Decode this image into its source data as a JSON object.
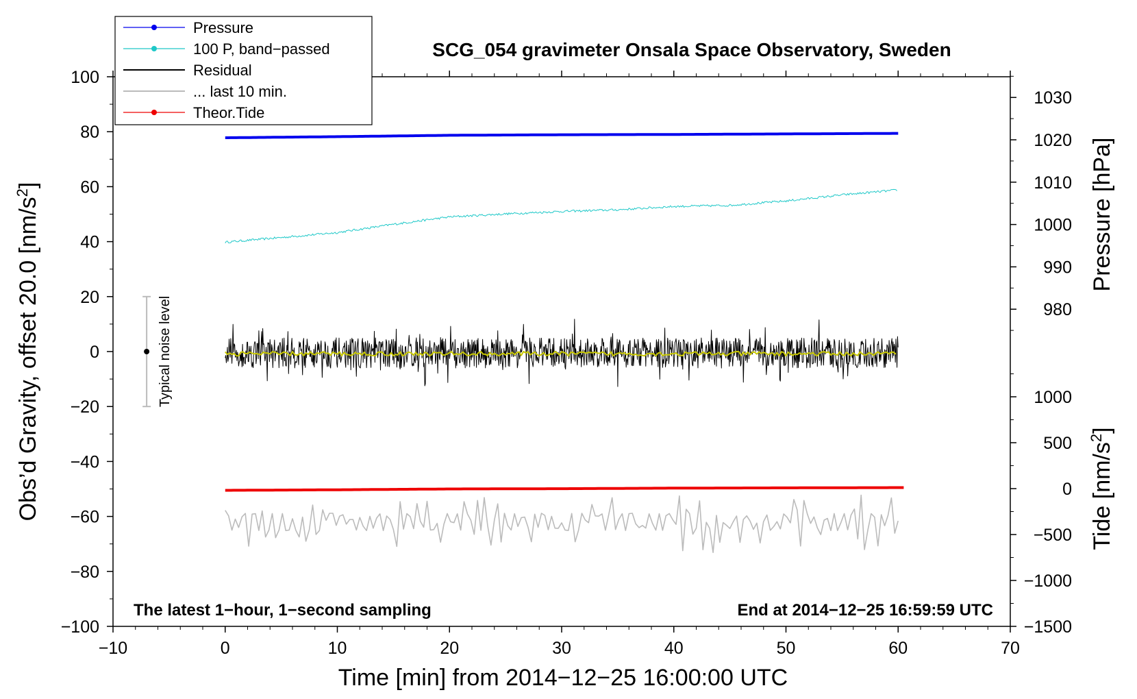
{
  "chart_data": {
    "type": "line",
    "title": "SCG_054 gravimeter Onsala Space Observatory, Sweden",
    "xlabel": "Time [min] from 2014−12−25 16:00:00 UTC",
    "ylabel_main": "Obs’d Gravity, offset 20.0 [nm/s",
    "ylabel_main_sup": "2",
    "ylabel_main_end": "]",
    "ylabel_pressure": "Pressure [hPa]",
    "ylabel_tide": "Tide [nm/s",
    "ylabel_tide_sup": "2",
    "ylabel_tide_end": "]",
    "xlim": [
      -10,
      70
    ],
    "ylim": [
      -100,
      100
    ],
    "x_ticks": [
      "−10",
      "0",
      "10",
      "20",
      "30",
      "40",
      "50",
      "60",
      "70"
    ],
    "x_tick_values": [
      -10,
      0,
      10,
      20,
      30,
      40,
      50,
      60,
      70
    ],
    "y_ticks": [
      "100",
      "80",
      "60",
      "40",
      "20",
      "0",
      "−20",
      "−40",
      "−60",
      "−80",
      "−100"
    ],
    "y_tick_values": [
      100,
      80,
      60,
      40,
      20,
      0,
      -20,
      -40,
      -60,
      -80,
      -100
    ],
    "pressure_ticks": [
      "1030",
      "1020",
      "1010",
      "1000",
      "990",
      "980"
    ],
    "pressure_tick_values": [
      1030,
      1020,
      1010,
      1000,
      990,
      980
    ],
    "tide_ticks": [
      "1000",
      "500",
      "0",
      "−500",
      "−1000",
      "−1500"
    ],
    "tide_tick_values": [
      1000,
      500,
      0,
      -500,
      -1000,
      -1500
    ],
    "note_left": "The latest 1−hour, 1−second sampling",
    "note_right": "End at 2014−12−25 16:59:59 UTC",
    "noise_label": "Typical noise level",
    "noise_bar": {
      "x": -7,
      "y": 0,
      "ylow": -20,
      "yhigh": 20
    },
    "legend": [
      {
        "label": "Pressure",
        "color": "#0000ee",
        "marker": true
      },
      {
        "label": "100 P, band−passed",
        "color": "#1ec8c8",
        "marker": true
      },
      {
        "label": "Residual",
        "color": "#000000",
        "marker": false
      },
      {
        "label": "... last 10 min.",
        "color": "#bbbbbb",
        "marker": false
      },
      {
        "label": "Theor.Tide",
        "color": "#ee0000",
        "marker": true
      }
    ],
    "series": [
      {
        "name": "Pressure",
        "color": "#0000ee",
        "x": [
          0,
          10,
          20,
          30,
          40,
          50,
          60
        ],
        "y": [
          77.8,
          78.2,
          78.7,
          78.9,
          79.0,
          79.2,
          79.4
        ]
      },
      {
        "name": "100 P, band-passed",
        "color": "#1ec8c8",
        "x": [
          0,
          5,
          10,
          15,
          20,
          25,
          30,
          35,
          40,
          45,
          50,
          55,
          60
        ],
        "y": [
          39.8,
          41.5,
          43.3,
          46.3,
          49.0,
          50.1,
          51.0,
          51.6,
          52.8,
          53.2,
          54.8,
          57.0,
          58.8
        ]
      },
      {
        "name": "Residual",
        "color": "#000000",
        "x_range": [
          0,
          60
        ],
        "center": -0.5,
        "envelope": 10
      },
      {
        "name": "Residual smoothed",
        "color": "#c8c800",
        "x_range": [
          0,
          60
        ],
        "center": -0.8
      },
      {
        "name": "... last 10 min.",
        "color": "#bbbbbb",
        "x_range": [
          0,
          60
        ],
        "center": -62,
        "envelope": 9
      },
      {
        "name": "Theor.Tide",
        "color": "#ee0000",
        "x": [
          0,
          10,
          20,
          30,
          40,
          50,
          60.5
        ],
        "y": [
          -50.5,
          -50.3,
          -50.0,
          -49.9,
          -49.7,
          -49.6,
          -49.5
        ]
      }
    ]
  }
}
